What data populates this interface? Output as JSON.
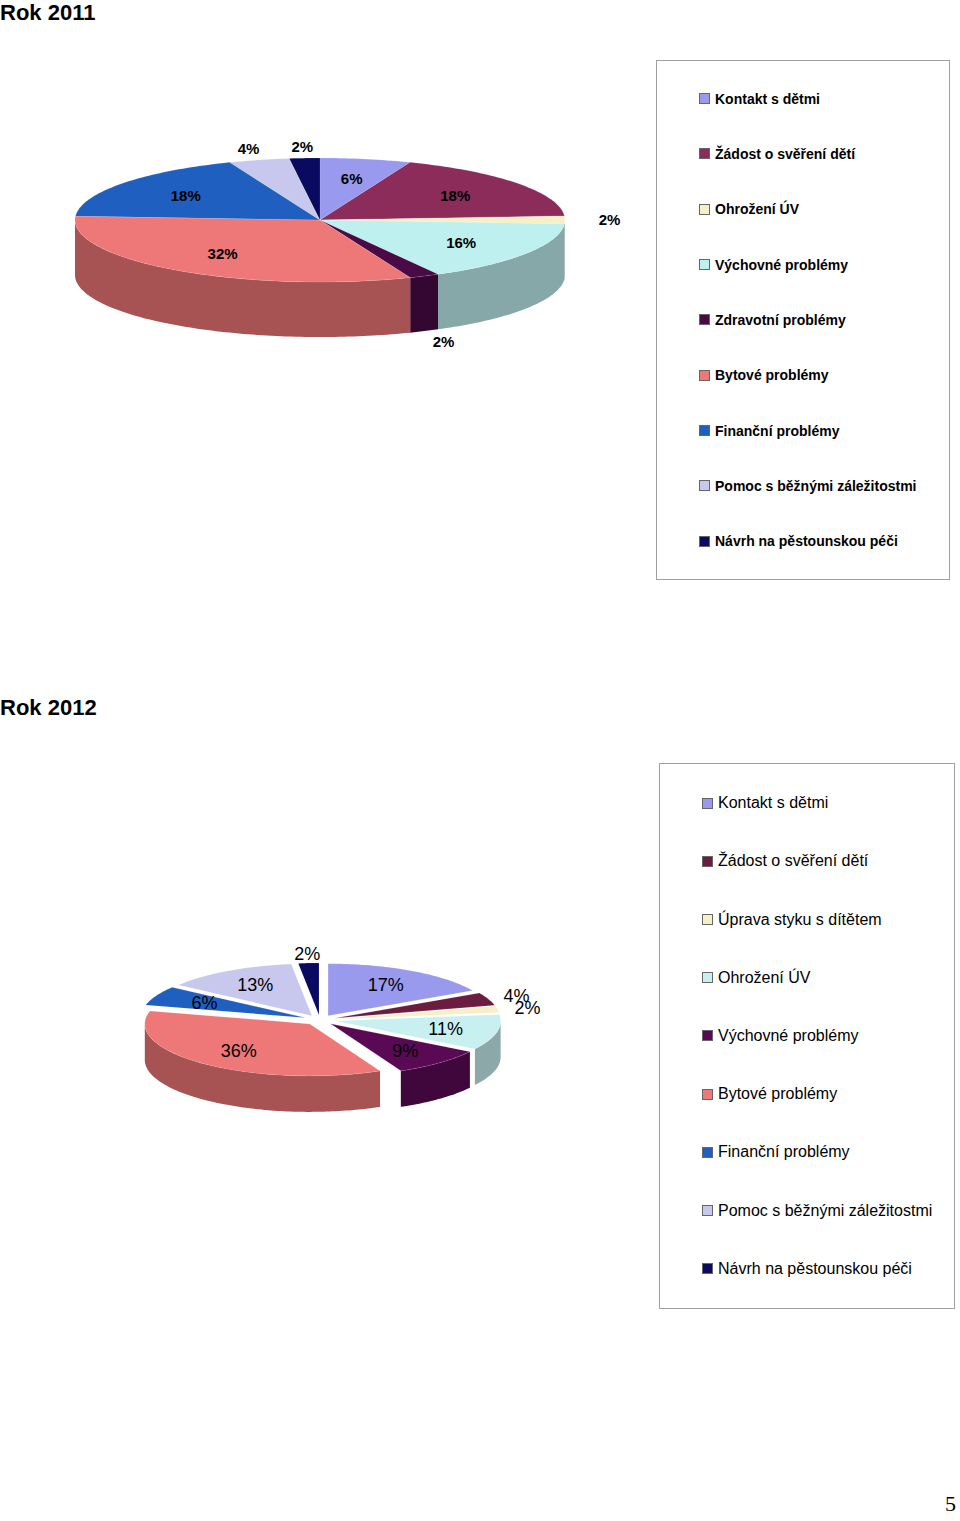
{
  "chart_data": [
    {
      "type": "pie",
      "title": "Rok 2011",
      "categories": [
        "Kontakt s dětmi",
        "Žádost o svěření dětí",
        "Ohrožení ÚV",
        "Výchovné problémy",
        "Zdravotní problémy",
        "Bytové problémy",
        "Finanční problémy",
        "Pomoc s běžnými záležitostmi",
        "Návrh na pěstounskou péči"
      ],
      "values": [
        6,
        18,
        2,
        16,
        2,
        32,
        18,
        4,
        2
      ],
      "value_labels": [
        "6%",
        "18%",
        "2%",
        "16%",
        "2%",
        "32%",
        "18%",
        "4%",
        "2%"
      ],
      "colors": [
        "#9999ee",
        "#8b2c5a",
        "#f5f0c8",
        "#bff0f0",
        "#4a0a45",
        "#ee7777",
        "#1f5fbf",
        "#c8c8ee",
        "#0a0a60"
      ],
      "data_labels": true,
      "legend": "right"
    },
    {
      "type": "pie",
      "title": "Rok 2012",
      "categories": [
        "Kontakt s dětmi",
        "Žádost o svěření dětí",
        "Úprava styku s dítětem",
        "Ohrožení ÚV",
        "Výchovné problémy",
        "Bytové problémy",
        "Finanční problémy",
        "Pomoc s běžnými záležitostmi",
        "Návrh na pěstounskou péči"
      ],
      "values": [
        17,
        4,
        2,
        11,
        9,
        36,
        6,
        13,
        2
      ],
      "value_labels": [
        "17%",
        "4%",
        "2%",
        "11%",
        "9%",
        "36%",
        "6%",
        "13%",
        "2%"
      ],
      "colors": [
        "#9999ee",
        "#6b1d3f",
        "#f5f0c8",
        "#c8f0f0",
        "#5a0a55",
        "#ee7777",
        "#1f5fbf",
        "#c8c8ee",
        "#0a0a60"
      ],
      "data_labels": true,
      "legend": "right"
    }
  ],
  "page_number": "5"
}
